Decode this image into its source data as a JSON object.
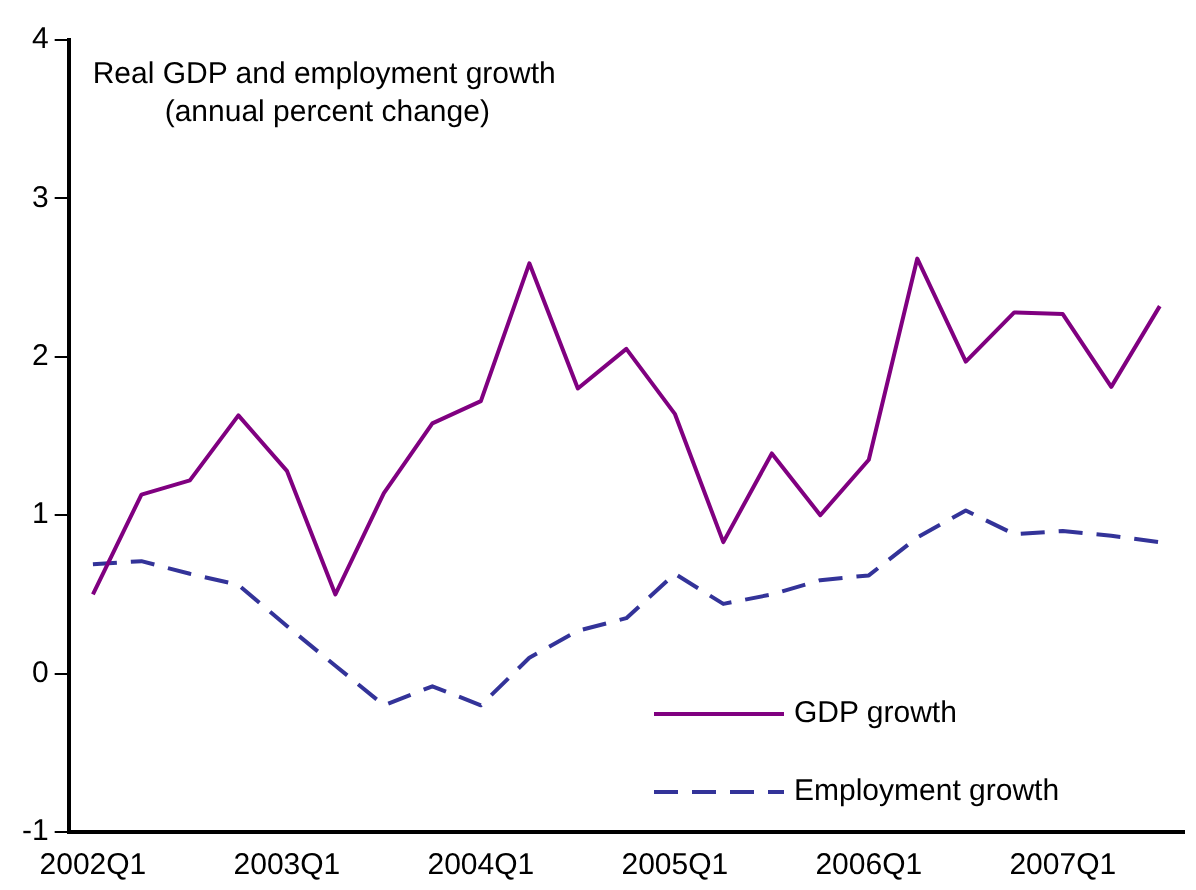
{
  "chart_data": {
    "type": "line",
    "title": "Real GDP and employment growth",
    "subtitle": "(annual percent change)",
    "categories": [
      "2002Q1",
      null,
      null,
      null,
      "2003Q1",
      null,
      null,
      null,
      "2004Q1",
      null,
      null,
      null,
      "2005Q1",
      null,
      null,
      null,
      "2006Q1",
      null,
      null,
      null,
      "2007Q1",
      null,
      null
    ],
    "series": [
      {
        "name": "GDP growth",
        "color": "#800080",
        "line_style": "solid",
        "values": [
          0.5,
          1.13,
          1.22,
          1.63,
          1.28,
          0.5,
          1.14,
          1.58,
          1.72,
          2.59,
          1.8,
          2.05,
          1.64,
          0.83,
          1.39,
          1.0,
          1.35,
          2.62,
          1.97,
          2.28,
          2.27,
          1.81,
          2.32
        ]
      },
      {
        "name": "Employment growth",
        "color": "#333399",
        "line_style": "dashed",
        "values": [
          0.69,
          0.71,
          0.63,
          0.56,
          0.3,
          0.05,
          -0.2,
          -0.08,
          -0.2,
          0.1,
          0.27,
          0.35,
          0.63,
          0.44,
          0.5,
          0.59,
          0.62,
          0.86,
          1.03,
          0.88,
          0.9,
          0.87,
          0.83
        ]
      }
    ],
    "ylim": [
      -1,
      4
    ],
    "yticks": [
      -1,
      0,
      1,
      2,
      3,
      4
    ],
    "grid": false,
    "legend": "bottom right",
    "marker": "none"
  }
}
